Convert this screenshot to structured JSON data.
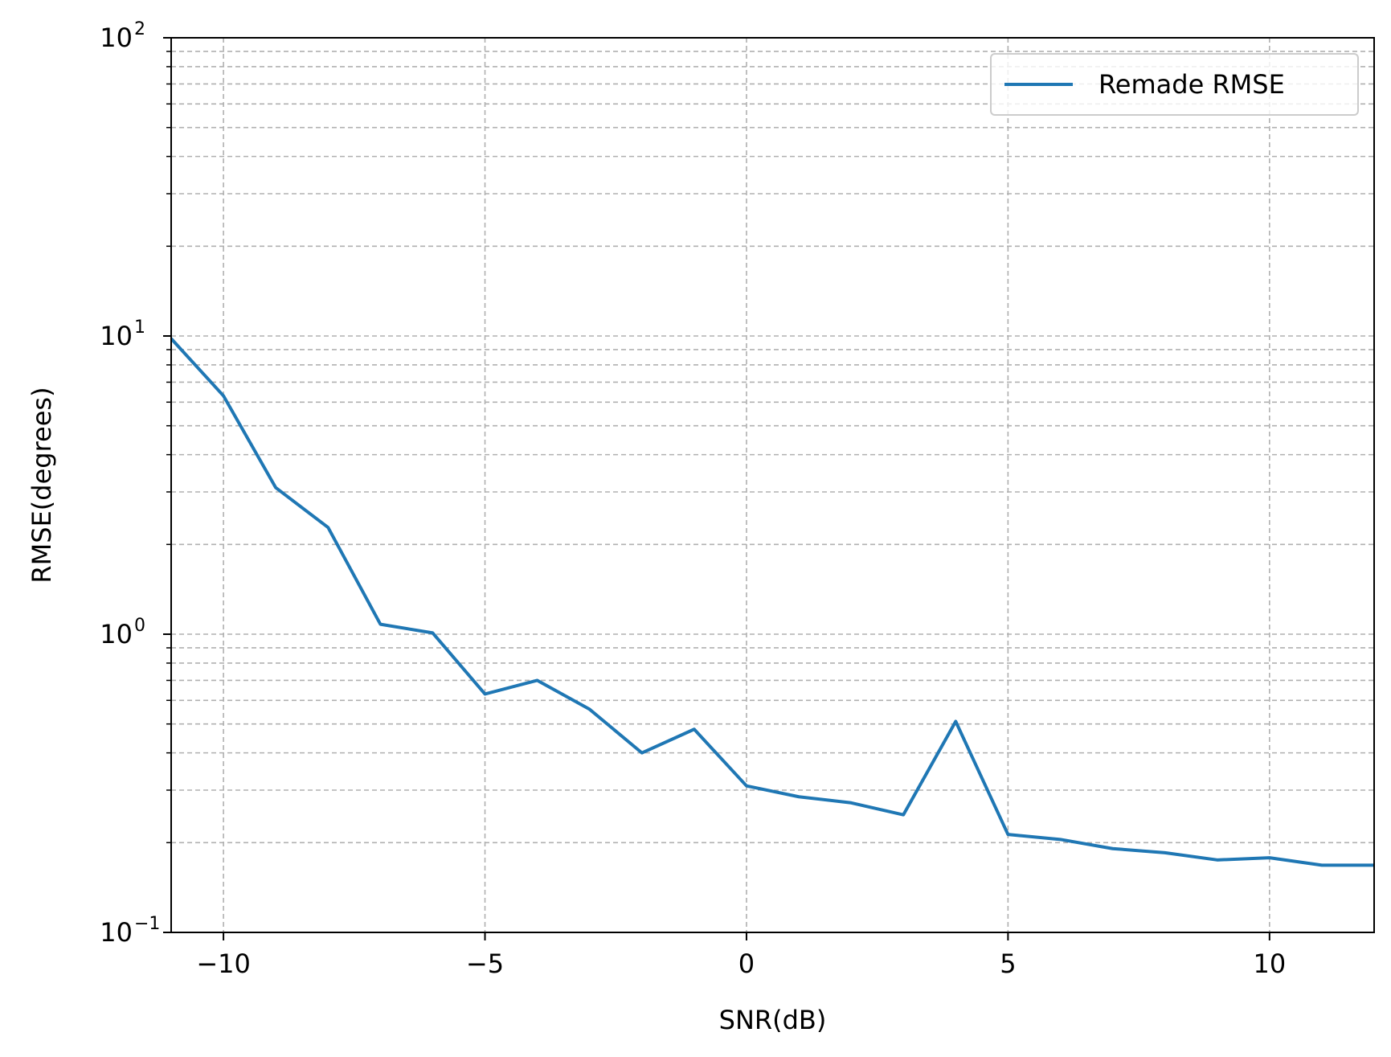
{
  "chart_data": {
    "type": "line",
    "xlabel": "SNR(dB)",
    "ylabel": "RMSE(degrees)",
    "x_scale": "linear",
    "y_scale": "log",
    "xlim": [
      -11,
      12
    ],
    "ylim": [
      0.1,
      100
    ],
    "x_ticks": [
      -10,
      -5,
      0,
      5,
      10
    ],
    "x_tick_labels": [
      "−10",
      "−5",
      "0",
      "5",
      "10"
    ],
    "y_ticks": [
      {
        "value": 0.1,
        "base": "10",
        "exp": "−1"
      },
      {
        "value": 1,
        "base": "10",
        "exp": "0"
      },
      {
        "value": 10,
        "base": "10",
        "exp": "1"
      },
      {
        "value": 100,
        "base": "10",
        "exp": "2"
      }
    ],
    "grid": true,
    "grid_minor": true,
    "legend_position": "top-right",
    "series": [
      {
        "name": "Remade RMSE",
        "color": "#1f77b4",
        "x": [
          -11,
          -10,
          -9,
          -8,
          -7,
          -6,
          -5,
          -4,
          -3,
          -2,
          -1,
          0,
          1,
          2,
          3,
          4,
          5,
          6,
          7,
          8,
          9,
          10,
          11,
          12
        ],
        "y": [
          9.8,
          6.3,
          3.1,
          2.28,
          1.08,
          1.01,
          0.63,
          0.7,
          0.56,
          0.4,
          0.48,
          0.31,
          0.285,
          0.272,
          0.248,
          0.51,
          0.213,
          0.205,
          0.191,
          0.185,
          0.175,
          0.178,
          0.168,
          0.168
        ]
      }
    ]
  }
}
